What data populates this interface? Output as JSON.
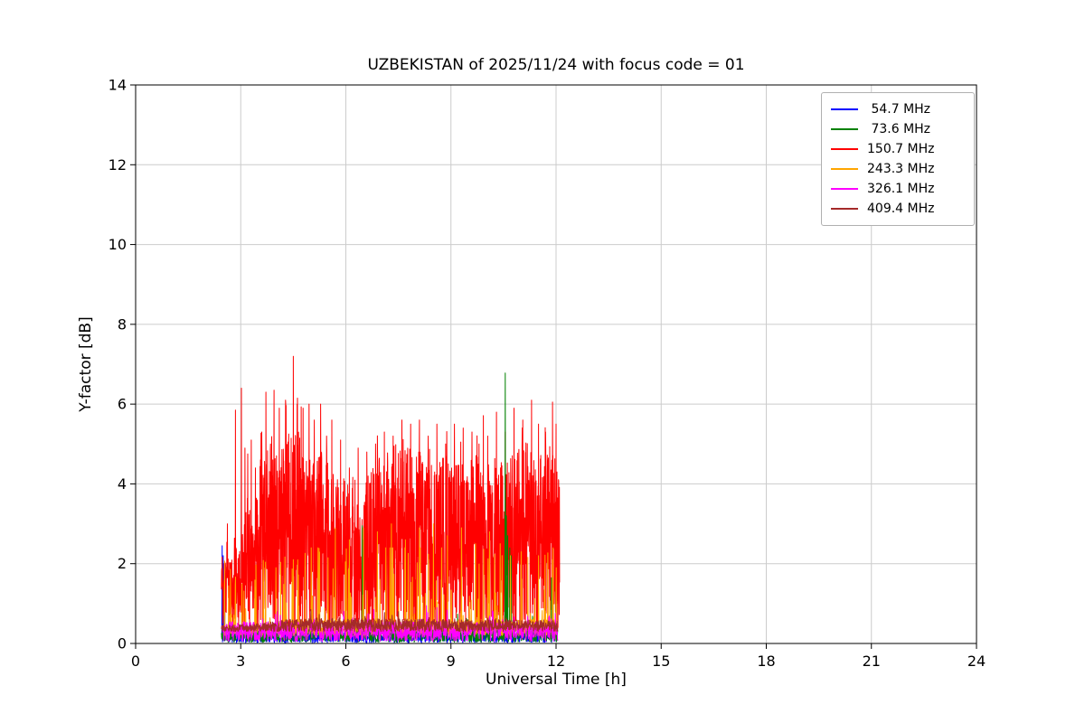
{
  "chart_data": {
    "type": "line",
    "title": "UZBEKISTAN of 2025/11/24 with focus code = 01",
    "xlabel": "Universal Time [h]",
    "ylabel": "Y-factor [dB]",
    "xlim": [
      0,
      24
    ],
    "ylim": [
      0,
      14
    ],
    "xticks": [
      0,
      3,
      6,
      9,
      12,
      15,
      18,
      21,
      24
    ],
    "yticks": [
      0,
      2,
      4,
      6,
      8,
      10,
      12,
      14
    ],
    "grid": true,
    "grid_color": "#cccccc",
    "spine_color": "#000000",
    "legend_position": "upper right",
    "observation_window_hours": [
      2.45,
      12.1
    ],
    "series": [
      {
        "name": " 54.7 MHz",
        "color": "#0000ff",
        "z": 1,
        "baseline_db": [
          0.0,
          0.3
        ],
        "gen": {
          "seed": 11,
          "t_start": 2.45,
          "t_end": 12.0,
          "step": 0.01,
          "base_min": 0.02,
          "base_max": 0.28,
          "spike_prob": 0.015,
          "spike_max": 0.3,
          "vmax": 0.6
        },
        "peaks": [
          [
            2.47,
            2.45
          ],
          [
            2.49,
            1.6
          ],
          [
            2.5,
            2.2
          ],
          [
            2.52,
            1.1
          ],
          [
            2.54,
            1.9
          ]
        ]
      },
      {
        "name": " 73.6 MHz",
        "color": "#008000",
        "z": 3,
        "baseline_db": [
          0.0,
          0.4
        ],
        "gen": {
          "seed": 22,
          "t_start": 2.45,
          "t_end": 12.05,
          "step": 0.01,
          "base_min": 0.03,
          "base_max": 0.4,
          "spike_prob": 0.02,
          "spike_max": 0.4,
          "vmax": 0.8
        },
        "peaks": [
          [
            6.47,
            2.95
          ],
          [
            6.5,
            2.6
          ],
          [
            10.55,
            6.78
          ],
          [
            10.58,
            3.2
          ],
          [
            10.62,
            2.7
          ],
          [
            10.68,
            2.4
          ],
          [
            10.72,
            2.2
          ],
          [
            11.87,
            1.65
          ],
          [
            12.0,
            1.4
          ]
        ]
      },
      {
        "name": "150.7 MHz",
        "color": "#ff0000",
        "z": 2,
        "baseline_db": [
          0.3,
          5.0
        ],
        "gen": {
          "seed": 33,
          "t_start": 2.45,
          "t_end": 12.1,
          "step": 0.005,
          "base_min": 0.25,
          "base_max": 5.0,
          "spike_prob": 0.06,
          "spike_max": 1.6,
          "vmax": 6.0,
          "envelope": [
            [
              2.45,
              0.45
            ],
            [
              2.7,
              0.42
            ],
            [
              3.0,
              0.5
            ],
            [
              3.2,
              0.75
            ],
            [
              3.35,
              0.6
            ],
            [
              3.5,
              0.9
            ],
            [
              3.7,
              1.0
            ],
            [
              4.0,
              0.95
            ],
            [
              4.3,
              1.08
            ],
            [
              4.6,
              1.1
            ],
            [
              4.8,
              0.95
            ],
            [
              5.1,
              0.9
            ],
            [
              5.4,
              1.0
            ],
            [
              5.7,
              0.85
            ],
            [
              6.0,
              0.8
            ],
            [
              6.3,
              0.85
            ],
            [
              6.45,
              0.6
            ],
            [
              6.6,
              0.85
            ],
            [
              7.0,
              0.95
            ],
            [
              7.4,
              1.0
            ],
            [
              7.8,
              1.0
            ],
            [
              8.2,
              0.95
            ],
            [
              8.6,
              1.0
            ],
            [
              9.0,
              0.92
            ],
            [
              9.4,
              0.9
            ],
            [
              9.7,
              0.95
            ],
            [
              10.0,
              0.9
            ],
            [
              10.4,
              0.95
            ],
            [
              10.8,
              0.95
            ],
            [
              11.2,
              1.02
            ],
            [
              11.5,
              0.95
            ],
            [
              11.8,
              1.0
            ],
            [
              12.0,
              0.95
            ],
            [
              12.1,
              0.8
            ]
          ]
        },
        "peaks": [
          [
            2.62,
            3.0
          ],
          [
            2.85,
            5.85
          ],
          [
            3.02,
            6.4
          ],
          [
            3.12,
            4.9
          ],
          [
            3.3,
            5.1
          ],
          [
            3.42,
            4.4
          ],
          [
            3.6,
            5.3
          ],
          [
            3.72,
            6.3
          ],
          [
            3.85,
            5.0
          ],
          [
            3.95,
            6.35
          ],
          [
            4.1,
            5.9
          ],
          [
            4.28,
            6.1
          ],
          [
            4.5,
            7.2
          ],
          [
            4.62,
            6.15
          ],
          [
            4.78,
            5.9
          ],
          [
            4.95,
            6.0
          ],
          [
            5.1,
            5.6
          ],
          [
            5.28,
            6.0
          ],
          [
            5.45,
            5.2
          ],
          [
            5.6,
            5.6
          ],
          [
            5.85,
            5.1
          ],
          [
            6.1,
            4.4
          ],
          [
            6.35,
            4.9
          ],
          [
            6.6,
            4.8
          ],
          [
            6.85,
            5.0
          ],
          [
            7.1,
            5.3
          ],
          [
            7.35,
            5.2
          ],
          [
            7.6,
            5.6
          ],
          [
            7.85,
            5.5
          ],
          [
            8.1,
            5.6
          ],
          [
            8.35,
            5.2
          ],
          [
            8.6,
            5.5
          ],
          [
            8.85,
            5.0
          ],
          [
            9.1,
            5.5
          ],
          [
            9.35,
            5.4
          ],
          [
            9.6,
            5.3
          ],
          [
            9.8,
            5.0
          ],
          [
            10.05,
            5.2
          ],
          [
            10.3,
            5.8
          ],
          [
            10.55,
            5.3
          ],
          [
            10.8,
            5.9
          ],
          [
            11.05,
            5.6
          ],
          [
            11.3,
            6.1
          ],
          [
            11.5,
            5.5
          ],
          [
            11.7,
            5.3
          ],
          [
            11.9,
            6.05
          ],
          [
            12.0,
            5.5
          ]
        ]
      },
      {
        "name": "243.3 MHz",
        "color": "#ffa500",
        "z": 4,
        "baseline_db": [
          0.2,
          0.7
        ],
        "gen": {
          "seed": 44,
          "t_start": 2.5,
          "t_end": 12.05,
          "step": 0.008,
          "base_min": 0.2,
          "base_max": 0.6,
          "spike_prob": 0.1,
          "spike_max": 2.3,
          "vmax": 2.4,
          "envelope": [
            [
              2.5,
              0.8
            ],
            [
              3.8,
              0.8
            ],
            [
              4.2,
              1.0
            ],
            [
              12.05,
              1.0
            ]
          ]
        },
        "peaks": [
          [
            4.0,
            1.9
          ],
          [
            4.5,
            2.1
          ],
          [
            5.2,
            2.4
          ],
          [
            5.7,
            2.9
          ],
          [
            6.1,
            2.6
          ],
          [
            6.5,
            2.9
          ],
          [
            6.9,
            2.8
          ],
          [
            7.3,
            3.0
          ],
          [
            7.7,
            2.6
          ],
          [
            8.1,
            2.9
          ],
          [
            8.5,
            3.0
          ],
          [
            8.9,
            2.7
          ],
          [
            9.3,
            2.9
          ],
          [
            9.7,
            2.5
          ],
          [
            10.1,
            2.8
          ],
          [
            10.4,
            2.5
          ],
          [
            10.7,
            2.2
          ],
          [
            11.0,
            2.3
          ],
          [
            11.5,
            2.2
          ],
          [
            11.9,
            2.1
          ],
          [
            12.0,
            1.9
          ]
        ]
      },
      {
        "name": "326.1 MHz",
        "color": "#ff00ff",
        "z": 5,
        "baseline_db": [
          0.05,
          0.6
        ],
        "gen": {
          "seed": 55,
          "t_start": 2.5,
          "t_end": 12.05,
          "step": 0.01,
          "base_min": 0.05,
          "base_max": 0.55,
          "spike_prob": 0.06,
          "spike_max": 0.35,
          "vmax": 0.9
        },
        "peaks": [
          [
            6.8,
            0.85
          ],
          [
            8.3,
            0.95
          ],
          [
            8.6,
            0.9
          ],
          [
            10.2,
            0.8
          ]
        ]
      },
      {
        "name": "409.4 MHz",
        "color": "#a52a2a",
        "z": 6,
        "baseline_db": [
          0.3,
          0.65
        ],
        "gen": {
          "seed": 66,
          "t_start": 2.45,
          "t_end": 12.05,
          "step": 0.008,
          "base_min": 0.3,
          "base_max": 0.62,
          "spike_prob": 0.02,
          "spike_max": 0.25,
          "vmax": 0.8,
          "envelope": [
            [
              2.45,
              0.75
            ],
            [
              3.5,
              0.8
            ],
            [
              4.5,
              1.0
            ],
            [
              5.5,
              1.05
            ],
            [
              7.0,
              1.0
            ],
            [
              12.05,
              0.95
            ]
          ]
        },
        "peaks": [
          [
            5.0,
            0.85
          ],
          [
            7.5,
            0.8
          ]
        ]
      }
    ]
  }
}
